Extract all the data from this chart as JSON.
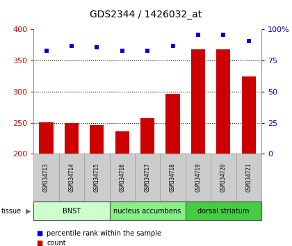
{
  "title": "GDS2344 / 1426032_at",
  "samples": [
    "GSM134713",
    "GSM134714",
    "GSM134715",
    "GSM134716",
    "GSM134717",
    "GSM134718",
    "GSM134719",
    "GSM134720",
    "GSM134721"
  ],
  "counts": [
    251,
    249,
    246,
    236,
    257,
    297,
    368,
    368,
    324
  ],
  "percentile_values": [
    83,
    87,
    86,
    83,
    83,
    87,
    96,
    96,
    91
  ],
  "ylim_left": [
    200,
    400
  ],
  "ylim_right": [
    0,
    100
  ],
  "yticks_left": [
    200,
    250,
    300,
    350,
    400
  ],
  "yticks_right": [
    0,
    25,
    50,
    75,
    100
  ],
  "bar_color": "#cc0000",
  "dot_color": "#0000cc",
  "bar_bottom": 200,
  "groups": [
    {
      "label": "BNST",
      "start": 0,
      "end": 3,
      "color": "#ccffcc"
    },
    {
      "label": "nucleus accumbens",
      "start": 3,
      "end": 6,
      "color": "#88ee88"
    },
    {
      "label": "dorsal striatum",
      "start": 6,
      "end": 9,
      "color": "#44cc44"
    }
  ],
  "legend_count": "count",
  "legend_pct": "percentile rank within the sample",
  "left_tick_color": "#cc0000",
  "right_tick_color": "#0000cc",
  "sample_bg_color": "#cccccc",
  "sample_border_color": "#999999",
  "grid_yticks": [
    250,
    300,
    350
  ]
}
